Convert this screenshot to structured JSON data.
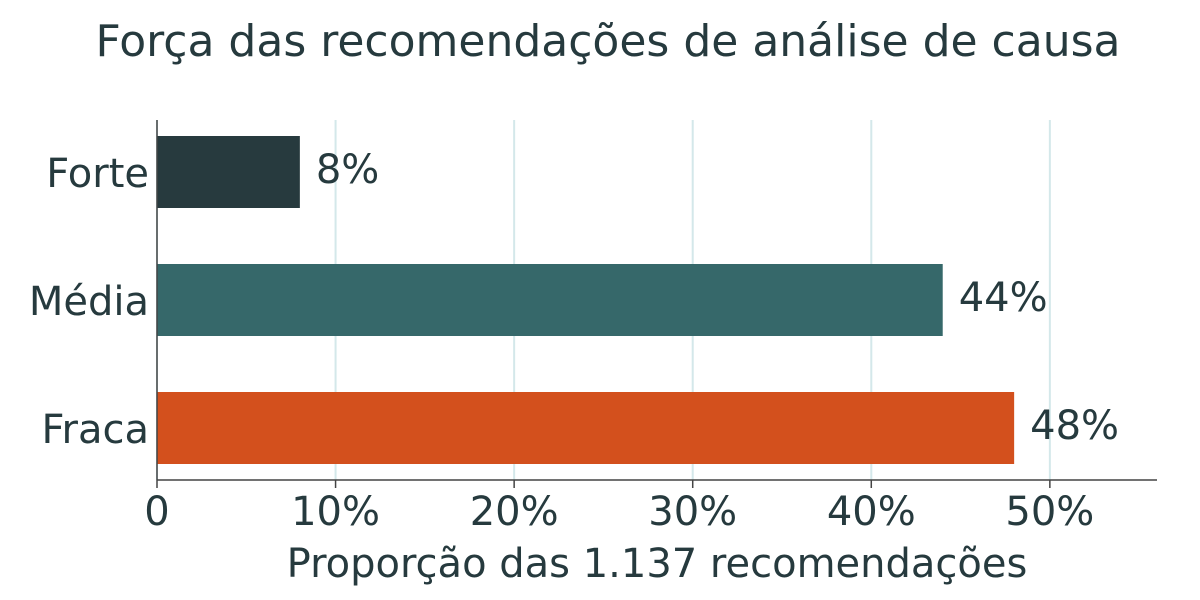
{
  "chart_data": {
    "type": "hbar",
    "title": "Força das recomendações de análise de causa",
    "x_label": "Proporção das 1.137 recomendações",
    "categories": [
      "Forte",
      "Média",
      "Fraca"
    ],
    "values": [
      8,
      44,
      48
    ],
    "value_labels": [
      "8%",
      "44%",
      "48%"
    ],
    "colors": [
      "#273a3e",
      "#36686a",
      "#d3501d"
    ],
    "xlim": [
      0,
      56
    ],
    "xticks": [
      0,
      {
        "value": 10,
        "label": "10%"
      },
      {
        "value": 20,
        "label": "20%"
      },
      {
        "value": 30,
        "label": "30%"
      },
      {
        "value": 40,
        "label": "40%"
      },
      {
        "value": 50,
        "label": "50%"
      }
    ],
    "grid": true
  }
}
